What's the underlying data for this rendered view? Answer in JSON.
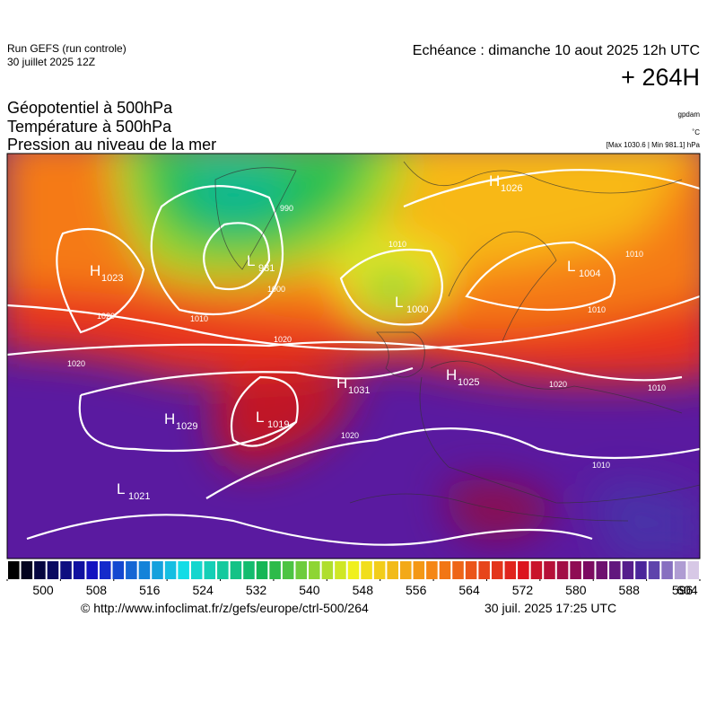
{
  "header": {
    "run": "Run GEFS (run controle)",
    "run_date": "30 juillet 2025 12Z",
    "valid": "Echéance : dimanche 10 aout 2025 12h UTC",
    "lead": "+ 264H",
    "fields": [
      "Géopotentiel à 500hPa",
      "Température à 500hPa",
      "Pression au niveau de la mer"
    ],
    "units": [
      "gpdam",
      "˚C",
      "[Max 1030.6 | Min 981.1] hPa"
    ]
  },
  "centers": [
    {
      "letter": "H",
      "value": "1023"
    },
    {
      "letter": "H",
      "value": "1026"
    },
    {
      "letter": "L",
      "value": "1004"
    },
    {
      "letter": "L",
      "value": "1000"
    },
    {
      "letter": "L",
      "value": "981"
    },
    {
      "letter": "H",
      "value": "1031"
    },
    {
      "letter": "H",
      "value": "1025"
    },
    {
      "letter": "H",
      "value": "1029"
    },
    {
      "letter": "L",
      "value": "1019"
    },
    {
      "letter": "L",
      "value": "1021"
    }
  ],
  "isobar_labels": [
    "1020",
    "1020",
    "1020",
    "1020",
    "1010",
    "1010",
    "1010",
    "1010",
    "1010",
    "1010",
    "1000",
    "990",
    "1020"
  ],
  "colorbar": {
    "min": 500,
    "max": 604,
    "ticks": [
      500,
      508,
      516,
      524,
      532,
      540,
      548,
      556,
      564,
      572,
      580,
      588,
      596,
      604
    ]
  },
  "footer": {
    "source": "© http://www.infoclimat.fr/z/gefs/europe/ctrl-500/264",
    "generated": "30 juil. 2025 17:25 UTC"
  }
}
